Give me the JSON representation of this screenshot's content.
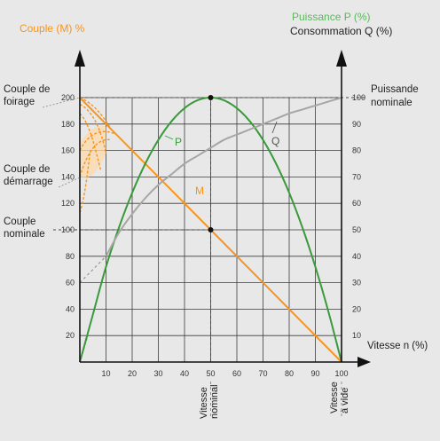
{
  "chart_data": {
    "type": "line",
    "left_axis_title": "Couple (M) %",
    "right_axis_title_1": "Puissance P (%)",
    "right_axis_title_2": "Consommation Q (%)",
    "x_axis_title": "Vitesse n (%)",
    "xlim": [
      0,
      100
    ],
    "ylim_left": [
      0,
      200
    ],
    "ylim_right": [
      0,
      100
    ],
    "grid": true,
    "x_ticks": [
      10,
      20,
      30,
      40,
      50,
      60,
      70,
      80,
      90,
      100
    ],
    "y_ticks_left": [
      20,
      40,
      60,
      80,
      100,
      120,
      140,
      160,
      180,
      200
    ],
    "y_ticks_right": [
      10,
      20,
      30,
      40,
      50,
      60,
      70,
      80,
      90,
      100
    ],
    "left_annotations": {
      "couple_foirage": [
        "Couple de",
        "foirage"
      ],
      "couple_demarrage": [
        "Couple de",
        "démarrage"
      ],
      "couple_nominale": [
        "Couple",
        "nominale"
      ]
    },
    "right_annotation": [
      "Puissande",
      "nominale"
    ],
    "bottom_annotations": {
      "vitesse_nominal": [
        "Vitesse",
        "nominal"
      ],
      "vitesse_a_vide": [
        "Vitesse",
        "à vide"
      ]
    },
    "series": [
      {
        "name": "M",
        "axis": "left",
        "color": "#f7941d",
        "x": [
          0,
          50,
          100
        ],
        "y": [
          200,
          100,
          0
        ]
      },
      {
        "name": "P",
        "axis": "right",
        "color": "#3a9a3a",
        "x": [
          0,
          5,
          10,
          15,
          20,
          25,
          30,
          35,
          40,
          45,
          50,
          55,
          60,
          65,
          70,
          75,
          80,
          85,
          90,
          95,
          100
        ],
        "y": [
          0,
          18,
          36,
          51,
          64,
          75,
          84,
          91,
          96,
          99,
          100,
          99,
          96,
          91,
          84,
          75,
          64,
          51,
          36,
          19,
          0
        ]
      },
      {
        "name": "Q",
        "axis": "right",
        "color": "#a6a6a6",
        "x": [
          10,
          15,
          20,
          25,
          30,
          35,
          40,
          45,
          50,
          55,
          60,
          65,
          70,
          75,
          80,
          85,
          90,
          95,
          100
        ],
        "y": [
          40,
          49,
          56,
          62,
          67,
          71,
          75,
          78,
          81,
          84,
          86,
          88,
          90,
          92,
          94,
          95.5,
          97,
          98.5,
          100
        ]
      }
    ],
    "markers": [
      {
        "x": 50,
        "y_left": 200
      },
      {
        "x": 50,
        "y_left": 100
      }
    ],
    "curve_labels": {
      "P": "P",
      "Q": "Q",
      "M": "M"
    }
  }
}
